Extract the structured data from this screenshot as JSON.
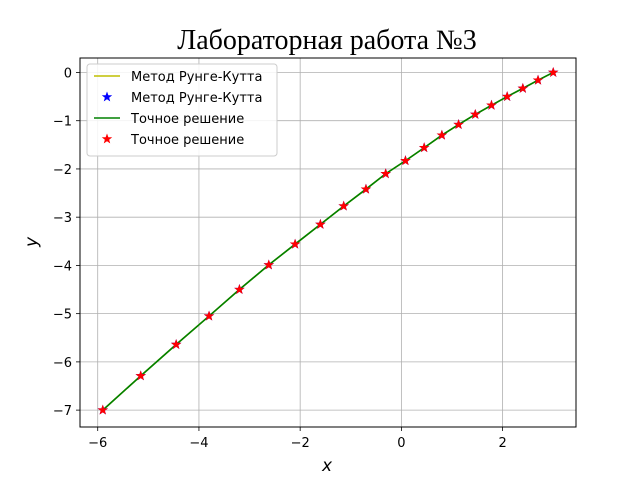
{
  "chart_data": {
    "type": "line",
    "title": "Лабораторная работа №3",
    "xlabel": "x",
    "ylabel": "y",
    "xlim": [
      -6.35,
      3.45
    ],
    "ylim": [
      -7.35,
      0.3
    ],
    "xticks": [
      -6,
      -4,
      -2,
      0,
      2
    ],
    "yticks": [
      0,
      -1,
      -2,
      -3,
      -4,
      -5,
      -6,
      -7
    ],
    "grid": true,
    "legend_position": "top-left",
    "x": [
      -5.9,
      -5.15,
      -4.45,
      -3.8,
      -3.2,
      -2.62,
      -2.1,
      -1.6,
      -1.14,
      -0.7,
      -0.31,
      0.08,
      0.45,
      0.8,
      1.13,
      1.46,
      1.78,
      2.09,
      2.4,
      2.7,
      3.0
    ],
    "series": [
      {
        "name": "Метод Рунге-Кутта",
        "style": "line",
        "color": "#bfbf00",
        "values": [
          -7.0,
          -6.29,
          -5.64,
          -5.05,
          -4.5,
          -3.99,
          -3.56,
          -3.15,
          -2.77,
          -2.42,
          -2.1,
          -1.83,
          -1.56,
          -1.3,
          -1.08,
          -0.87,
          -0.68,
          -0.5,
          -0.33,
          -0.16,
          0.0
        ]
      },
      {
        "name": "Метод Рунге-Кутта",
        "style": "star",
        "color": "#0000ff",
        "values": [
          -7.0,
          -6.29,
          -5.64,
          -5.05,
          -4.5,
          -3.99,
          -3.56,
          -3.15,
          -2.77,
          -2.42,
          -2.1,
          -1.83,
          -1.56,
          -1.3,
          -1.08,
          -0.87,
          -0.68,
          -0.5,
          -0.33,
          -0.16,
          0.0
        ]
      },
      {
        "name": "Точное решение",
        "style": "line",
        "color": "#008000",
        "values": [
          -7.0,
          -6.29,
          -5.64,
          -5.05,
          -4.5,
          -3.99,
          -3.56,
          -3.15,
          -2.77,
          -2.42,
          -2.1,
          -1.83,
          -1.56,
          -1.3,
          -1.08,
          -0.87,
          -0.68,
          -0.5,
          -0.33,
          -0.16,
          0.0
        ]
      },
      {
        "name": "Точное решение",
        "style": "star",
        "color": "#ff0000",
        "values": [
          -7.0,
          -6.29,
          -5.64,
          -5.05,
          -4.5,
          -3.99,
          -3.56,
          -3.15,
          -2.77,
          -2.42,
          -2.1,
          -1.83,
          -1.56,
          -1.3,
          -1.08,
          -0.87,
          -0.68,
          -0.5,
          -0.33,
          -0.16,
          0.0
        ]
      }
    ]
  }
}
